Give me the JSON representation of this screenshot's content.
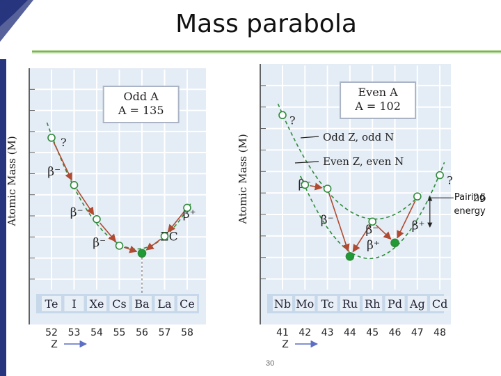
{
  "slide": {
    "title": "Mass parabola",
    "page_number": "30",
    "pairing_label": "Pairing energy",
    "accent_green": "#7ab648",
    "accent_navy": "#27357e"
  },
  "chart_data": [
    {
      "type": "scatter",
      "subtitle_line1": "Odd A",
      "subtitle_line2": "A = 135",
      "ylabel": "Atomic Mass (M)",
      "xlabel": "Z",
      "x": [
        52,
        53,
        54,
        55,
        56,
        57,
        58
      ],
      "elements": [
        "Te",
        "I",
        "Xe",
        "Cs",
        "Ba",
        "La",
        "Ce"
      ],
      "ylim": [
        0,
        10
      ],
      "series": [
        {
          "name": "Odd A parabola",
          "values": [
            7.8,
            5.3,
            3.5,
            2.1,
            1.7,
            2.6,
            4.1
          ],
          "stable_index": 4
        }
      ],
      "decays": [
        {
          "from": 0,
          "to": 1,
          "label": "β⁻"
        },
        {
          "from": 1,
          "to": 2,
          "label": "β⁻"
        },
        {
          "from": 2,
          "to": 3,
          "label": "β⁻"
        },
        {
          "from": 3,
          "to": 4,
          "label": ""
        },
        {
          "from": 5,
          "to": 4,
          "label": "EC"
        },
        {
          "from": 6,
          "to": 5,
          "label": "β⁺"
        }
      ],
      "unknown_marks": [
        {
          "index": 0,
          "label": "?"
        }
      ]
    },
    {
      "type": "scatter",
      "subtitle_line1": "Even A",
      "subtitle_line2": "A = 102",
      "ylabel": "Atomic Mass (M)",
      "xlabel": "Z",
      "x": [
        41,
        42,
        43,
        44,
        45,
        46,
        47,
        48
      ],
      "elements": [
        "Nb",
        "Mo",
        "Tc",
        "Ru",
        "Rh",
        "Pd",
        "Ag",
        "Cd"
      ],
      "ylim": [
        0,
        10
      ],
      "legend": [
        "Odd Z, odd N",
        "Even Z, even N"
      ],
      "series": [
        {
          "name": "Odd Z, odd N",
          "x": [
            41,
            43,
            45,
            47
          ],
          "values": [
            8.8,
            5.0,
            3.3,
            4.6
          ]
        },
        {
          "name": "Even Z, even N",
          "x": [
            42,
            44,
            46,
            48
          ],
          "values": [
            5.2,
            1.5,
            2.2,
            5.7
          ],
          "stable_x": [
            44,
            46
          ]
        }
      ],
      "decays": [
        {
          "from_z": 42,
          "to_z": 43,
          "label": "β⁻"
        },
        {
          "from_z": 43,
          "to_z": 44,
          "label": "β⁻"
        },
        {
          "from_z": 45,
          "to_z": 44,
          "label": "β⁺"
        },
        {
          "from_z": 45,
          "to_z": 46,
          "label": "β⁻"
        },
        {
          "from_z": 47,
          "to_z": 46,
          "label": "β⁺"
        }
      ],
      "unknown_marks": [
        {
          "z": 41,
          "label": "?"
        },
        {
          "z": 48,
          "label": "?"
        }
      ],
      "pairing_symbol": "2δ"
    }
  ]
}
